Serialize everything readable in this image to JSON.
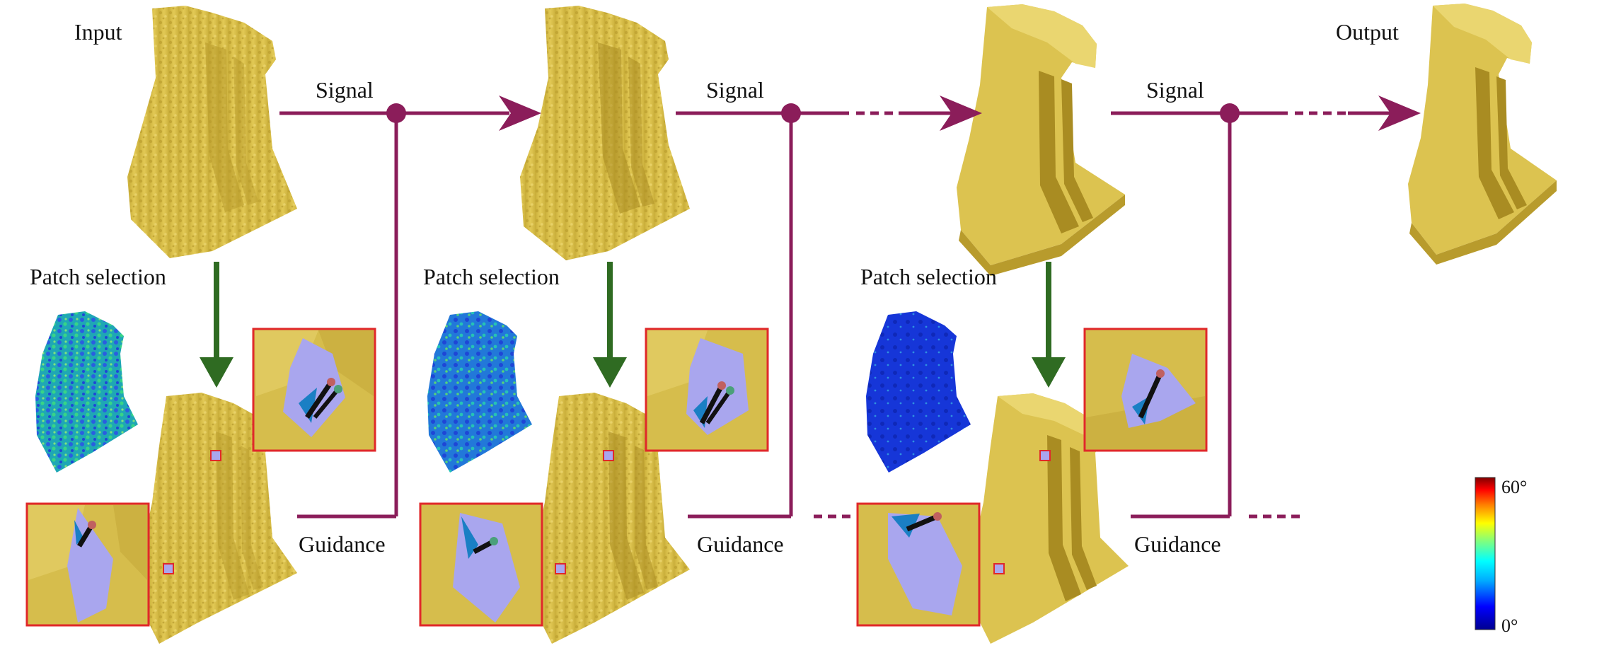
{
  "labels": {
    "input": "Input",
    "output": "Output",
    "signal": "Signal",
    "patch_selection": "Patch selection",
    "guidance": "Guidance"
  },
  "colorbar": {
    "max_label": "60°",
    "min_label": "0°",
    "stops": [
      "#00008f",
      "#0000ff",
      "#00aaff",
      "#00ffff",
      "#7fff7f",
      "#ffff00",
      "#ff8000",
      "#ff0000",
      "#800000"
    ]
  },
  "colors": {
    "flow_arrow": "#8b1d5a",
    "selection_arrow": "#2f6b22",
    "mesh": "#d9c04c",
    "mesh_dark": "#b89b2c",
    "patch": "#a9a6ee",
    "zoom_border": "#e0282a",
    "error_low": "#1e46d6",
    "error_mid": "#1fb7a8"
  }
}
